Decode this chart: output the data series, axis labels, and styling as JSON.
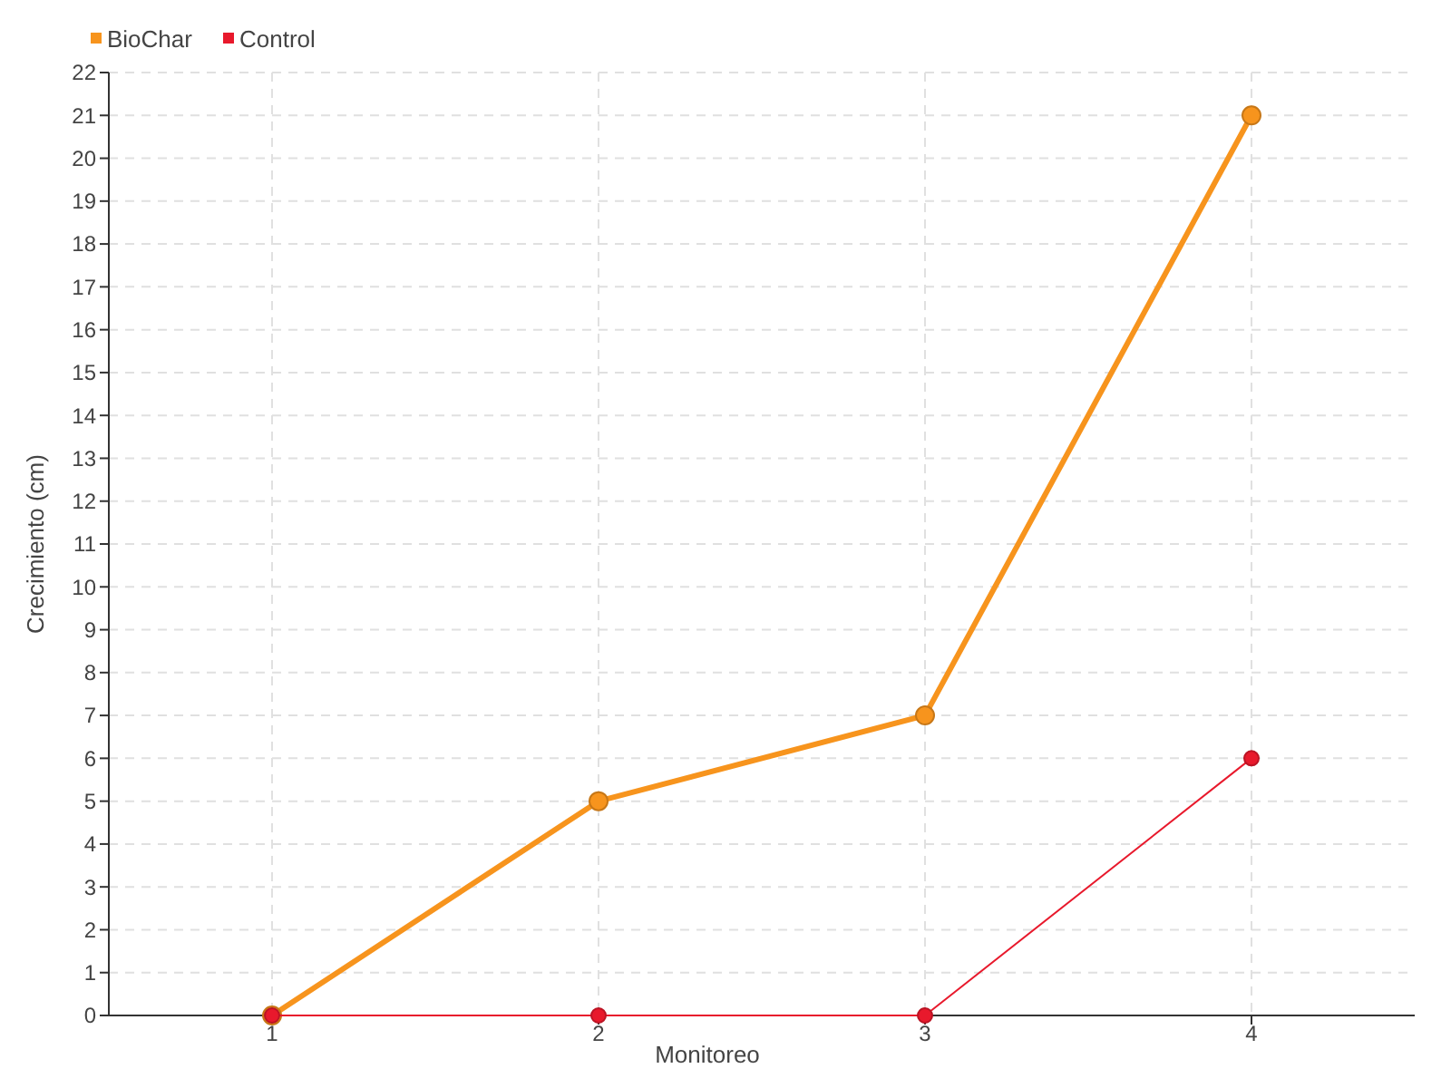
{
  "chart_data": {
    "type": "line",
    "xlabel": "Monitoreo",
    "ylabel": "Crecimiento (cm)",
    "categories": [
      "1",
      "2",
      "3",
      "4"
    ],
    "series": [
      {
        "name": "BioChar",
        "color": "#f7941d",
        "values": [
          0,
          5,
          7,
          21
        ]
      },
      {
        "name": "Control",
        "color": "#e8192c",
        "values": [
          0,
          0,
          0,
          6
        ]
      }
    ],
    "ylim": [
      0,
      22
    ],
    "yticks": [
      0,
      1,
      2,
      3,
      4,
      5,
      6,
      7,
      8,
      9,
      10,
      11,
      12,
      13,
      14,
      15,
      16,
      17,
      18,
      19,
      20,
      21,
      22
    ],
    "grid": true,
    "legend": "top left",
    "marker": "circle",
    "line_style": "solid"
  }
}
